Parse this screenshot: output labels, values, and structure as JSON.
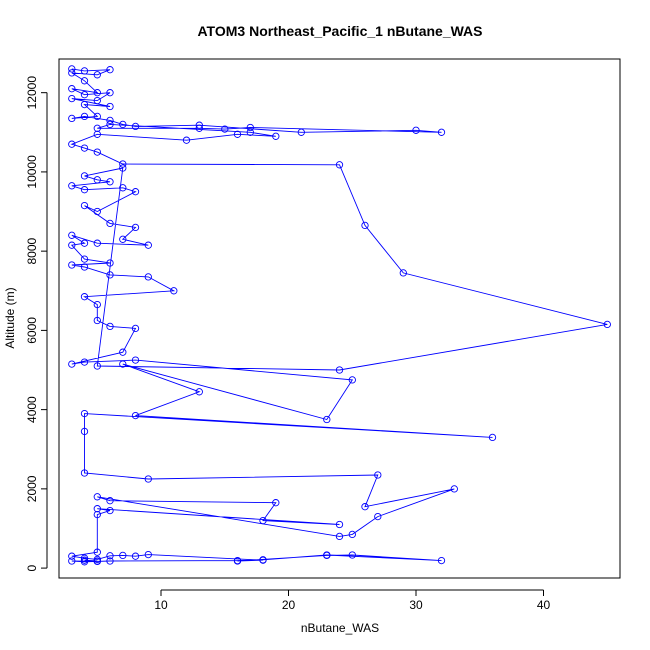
{
  "chart_data": {
    "type": "line",
    "title": "ATOM3 Northeast_Pacific_1 nButane_WAS",
    "xlabel": "nButane_WAS",
    "ylabel": "Altitude (m)",
    "xlim": [
      2,
      46
    ],
    "ylim": [
      -250,
      12850
    ],
    "xticks": [
      10,
      20,
      30,
      40
    ],
    "yticks": [
      0,
      2000,
      4000,
      6000,
      8000,
      10000,
      12000
    ],
    "grid": false,
    "legend": "none",
    "color": "#0000ff",
    "marker": "open-circle",
    "points": [
      [
        3,
        12600
      ],
      [
        4,
        12550
      ],
      [
        6,
        12580
      ],
      [
        5,
        12450
      ],
      [
        3,
        12500
      ],
      [
        4,
        12300
      ],
      [
        5,
        12000
      ],
      [
        3,
        12100
      ],
      [
        4,
        11950
      ],
      [
        6,
        12000
      ],
      [
        5,
        11800
      ],
      [
        3,
        11850
      ],
      [
        6,
        11650
      ],
      [
        4,
        11700
      ],
      [
        5,
        11400
      ],
      [
        3,
        11350
      ],
      [
        4,
        11400
      ],
      [
        6,
        11300
      ],
      [
        7,
        11200
      ],
      [
        8,
        11150
      ],
      [
        13,
        11180
      ],
      [
        21,
        11000
      ],
      [
        30,
        11050
      ],
      [
        32,
        11000
      ],
      [
        17,
        11120
      ],
      [
        15,
        11080
      ],
      [
        13,
        11100
      ],
      [
        5,
        11100
      ],
      [
        6,
        11200
      ],
      [
        17,
        11000
      ],
      [
        19,
        10900
      ],
      [
        16,
        10950
      ],
      [
        12,
        10800
      ],
      [
        5,
        10950
      ],
      [
        3,
        10700
      ],
      [
        4,
        10600
      ],
      [
        5,
        10500
      ],
      [
        7,
        10200
      ],
      [
        24,
        10180
      ],
      [
        26,
        8650
      ],
      [
        29,
        7450
      ],
      [
        45,
        6150
      ],
      [
        24,
        5000
      ],
      [
        5,
        5100
      ],
      [
        7,
        10100
      ],
      [
        4,
        9900
      ],
      [
        5,
        9800
      ],
      [
        6,
        9750
      ],
      [
        3,
        9650
      ],
      [
        4,
        9550
      ],
      [
        7,
        9600
      ],
      [
        8,
        9500
      ],
      [
        5,
        9000
      ],
      [
        4,
        9150
      ],
      [
        6,
        8700
      ],
      [
        8,
        8600
      ],
      [
        7,
        8300
      ],
      [
        9,
        8150
      ],
      [
        5,
        8200
      ],
      [
        3,
        8400
      ],
      [
        4,
        8200
      ],
      [
        3,
        8150
      ],
      [
        4,
        7800
      ],
      [
        6,
        7700
      ],
      [
        3,
        7650
      ],
      [
        4,
        7600
      ],
      [
        6,
        7400
      ],
      [
        9,
        7350
      ],
      [
        11,
        7000
      ],
      [
        4,
        6850
      ],
      [
        5,
        6650
      ],
      [
        5,
        6250
      ],
      [
        6,
        6100
      ],
      [
        8,
        6050
      ],
      [
        7,
        5450
      ],
      [
        3,
        5150
      ],
      [
        4,
        5200
      ],
      [
        8,
        5250
      ],
      [
        25,
        4750
      ],
      [
        23,
        3750
      ],
      [
        7,
        5150
      ],
      [
        13,
        4450
      ],
      [
        8,
        3850
      ],
      [
        36,
        3300
      ],
      [
        4,
        3900
      ],
      [
        4,
        3450
      ],
      [
        4,
        2400
      ],
      [
        9,
        2250
      ],
      [
        27,
        2350
      ],
      [
        26,
        1550
      ],
      [
        33,
        2000
      ],
      [
        27,
        1300
      ],
      [
        25,
        850
      ],
      [
        24,
        800
      ],
      [
        5,
        1800
      ],
      [
        6,
        1700
      ],
      [
        19,
        1650
      ],
      [
        18,
        1200
      ],
      [
        24,
        1100
      ],
      [
        5,
        1500
      ],
      [
        6,
        1450
      ],
      [
        5,
        1350
      ],
      [
        5,
        400
      ],
      [
        3,
        300
      ],
      [
        4,
        250
      ],
      [
        5,
        220
      ],
      [
        6,
        310
      ],
      [
        7,
        320
      ],
      [
        8,
        300
      ],
      [
        9,
        340
      ],
      [
        18,
        200
      ],
      [
        16,
        180
      ],
      [
        23,
        320
      ],
      [
        25,
        330
      ],
      [
        32,
        190
      ],
      [
        23,
        330
      ],
      [
        18,
        210
      ],
      [
        16,
        190
      ],
      [
        6,
        180
      ],
      [
        4,
        160
      ],
      [
        3,
        180
      ],
      [
        5,
        170
      ],
      [
        4,
        200
      ],
      [
        5,
        180
      ]
    ]
  }
}
